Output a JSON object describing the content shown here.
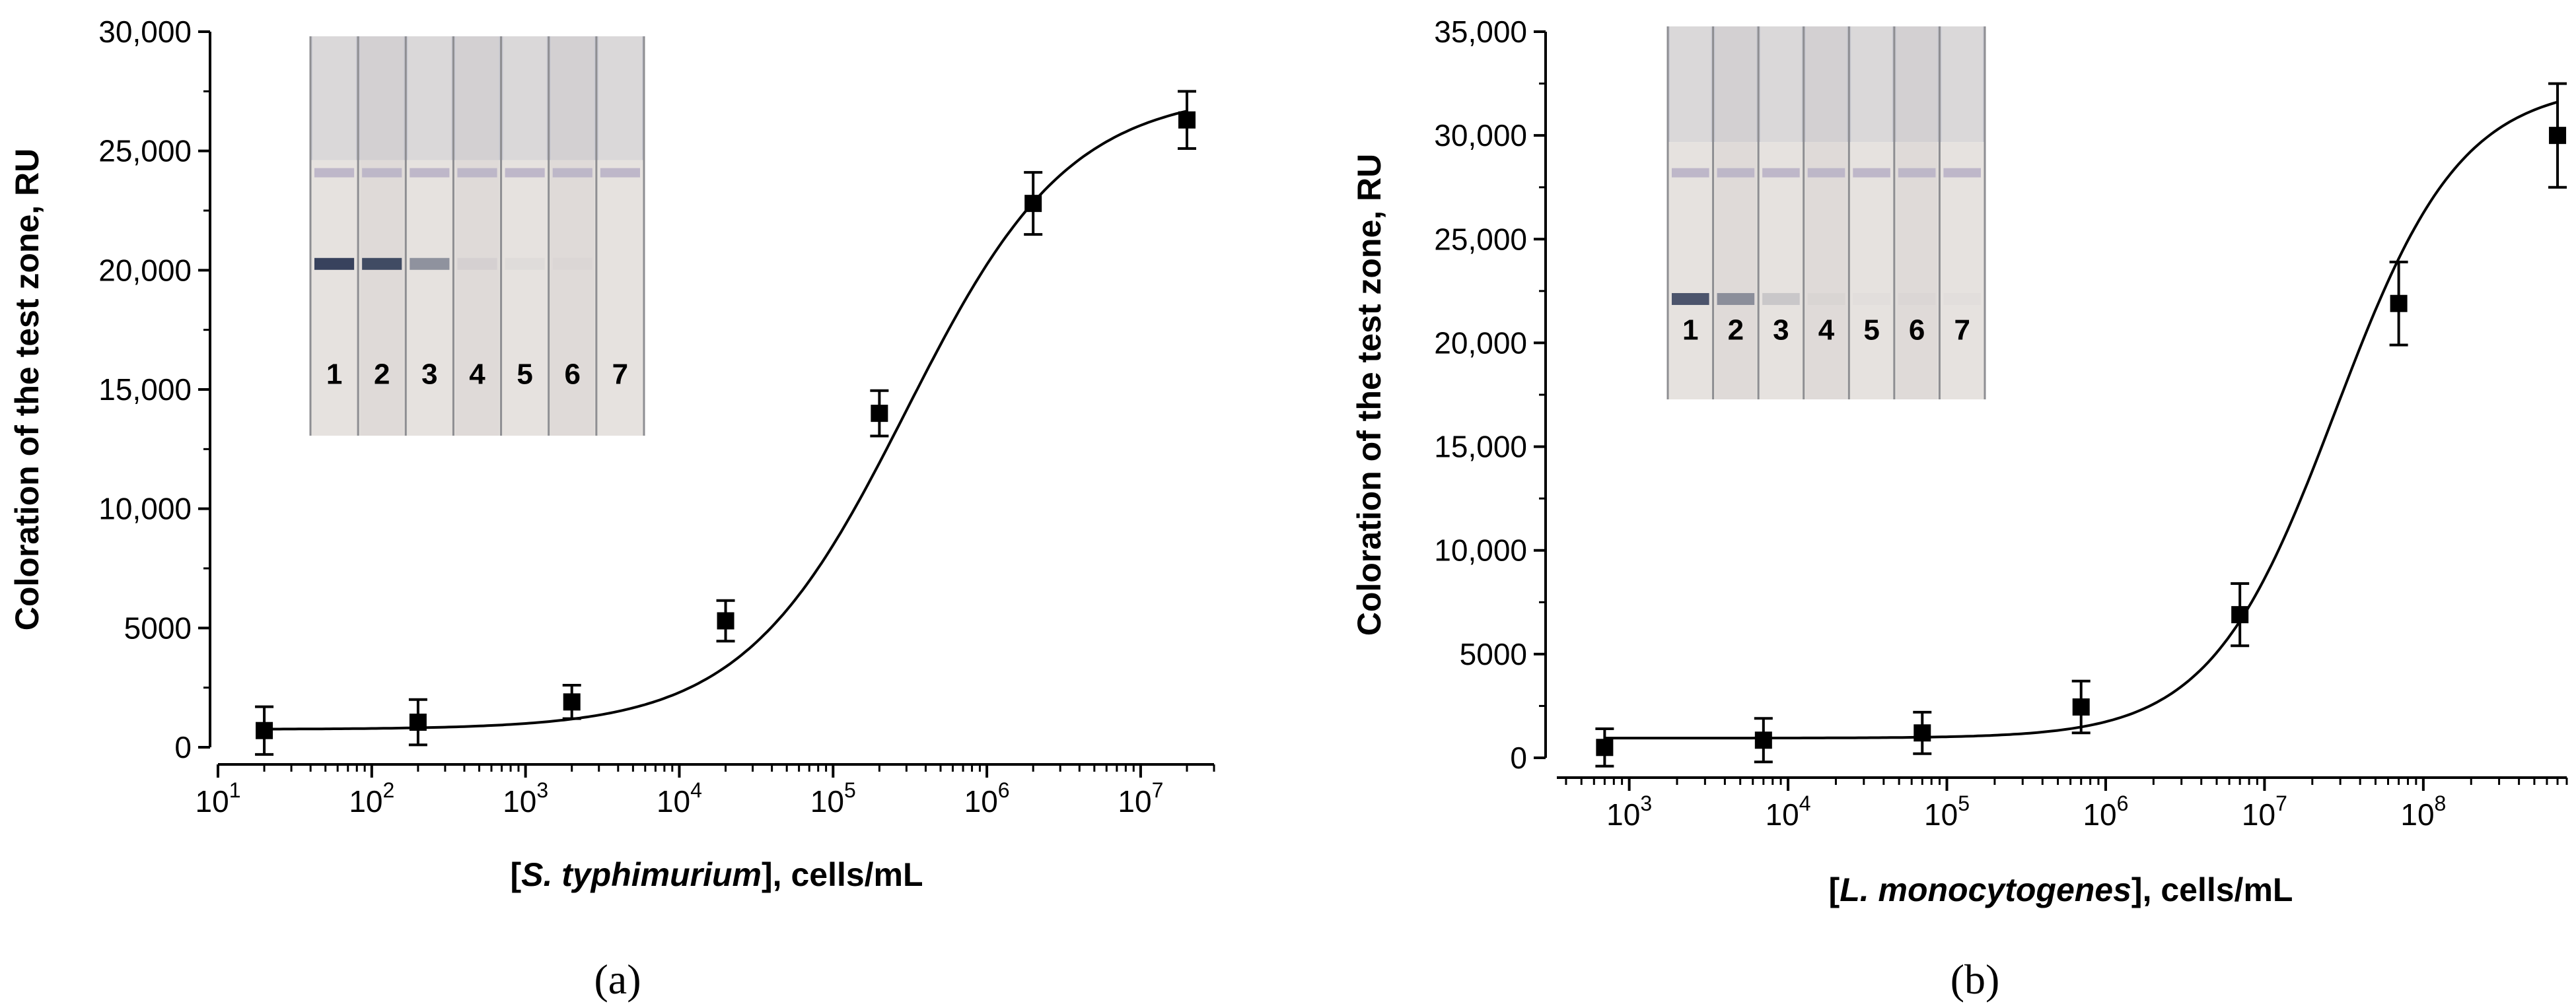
{
  "chart_data": [
    {
      "type": "scatter",
      "panel_label": "(a)",
      "xscale": "log",
      "xlim": [
        10,
        30000000
      ],
      "ylim": [
        0,
        30000
      ],
      "x_ticks": [
        {
          "value": 10,
          "base": "10",
          "exp": "1"
        },
        {
          "value": 100,
          "base": "10",
          "exp": "2"
        },
        {
          "value": 1000,
          "base": "10",
          "exp": "3"
        },
        {
          "value": 10000,
          "base": "10",
          "exp": "4"
        },
        {
          "value": 100000,
          "base": "10",
          "exp": "5"
        },
        {
          "value": 1000000,
          "base": "10",
          "exp": "6"
        },
        {
          "value": 10000000,
          "base": "10",
          "exp": "7"
        }
      ],
      "y_ticks": [
        {
          "value": 0,
          "label": "0"
        },
        {
          "value": 5000,
          "label": "5000"
        },
        {
          "value": 10000,
          "label": "10,000"
        },
        {
          "value": 15000,
          "label": "15,000"
        },
        {
          "value": 20000,
          "label": "20,000"
        },
        {
          "value": 25000,
          "label": "25,000"
        },
        {
          "value": 30000,
          "label": "30,000"
        }
      ],
      "xlabel": {
        "pre": "[",
        "italic": "S. typhimurium",
        "post": "], cells/mL"
      },
      "ylabel": "Coloration of the test zone, RU",
      "points": [
        {
          "x": 20,
          "y": 700,
          "err": 1000
        },
        {
          "x": 200,
          "y": 1050,
          "err": 950
        },
        {
          "x": 2000,
          "y": 1900,
          "err": 700
        },
        {
          "x": 20000,
          "y": 5300,
          "err": 850
        },
        {
          "x": 200000,
          "y": 14000,
          "err": 950
        },
        {
          "x": 2000000,
          "y": 22800,
          "err": 1300
        },
        {
          "x": 20000000,
          "y": 26300,
          "err": 1200
        }
      ],
      "fit": {
        "bottom": 750,
        "top": 27500,
        "ec50": 300000,
        "hill": 0.82
      },
      "inset": {
        "lanes": [
          "1",
          "2",
          "3",
          "4",
          "5",
          "6",
          "7"
        ],
        "band_intensity": [
          0.9,
          0.85,
          0.45,
          0.05,
          0.03,
          0.02,
          0.0
        ]
      }
    },
    {
      "type": "scatter",
      "panel_label": "(b)",
      "xscale": "log",
      "xlim": [
        350,
        800000000
      ],
      "ylim": [
        0,
        35000
      ],
      "x_ticks": [
        {
          "value": 1000,
          "base": "10",
          "exp": "3"
        },
        {
          "value": 10000,
          "base": "10",
          "exp": "4"
        },
        {
          "value": 100000,
          "base": "10",
          "exp": "5"
        },
        {
          "value": 1000000,
          "base": "10",
          "exp": "6"
        },
        {
          "value": 10000000,
          "base": "10",
          "exp": "7"
        },
        {
          "value": 100000000,
          "base": "10",
          "exp": "8"
        }
      ],
      "y_ticks": [
        {
          "value": 0,
          "label": "0"
        },
        {
          "value": 5000,
          "label": "5000"
        },
        {
          "value": 10000,
          "label": "10,000"
        },
        {
          "value": 15000,
          "label": "15,000"
        },
        {
          "value": 20000,
          "label": "20,000"
        },
        {
          "value": 25000,
          "label": "25,000"
        },
        {
          "value": 30000,
          "label": "30,000"
        },
        {
          "value": 35000,
          "label": "35,000"
        }
      ],
      "xlabel": {
        "pre": "[",
        "italic": "L. monocytogenes",
        "post": "], cells/mL"
      },
      "ylabel": "Coloration of the test zone, RU",
      "points": [
        {
          "x": 700,
          "y": 500,
          "err": 900
        },
        {
          "x": 7000,
          "y": 850,
          "err": 1050
        },
        {
          "x": 70000,
          "y": 1200,
          "err": 1000
        },
        {
          "x": 700000,
          "y": 2450,
          "err": 1250
        },
        {
          "x": 7000000,
          "y": 6900,
          "err": 1500
        },
        {
          "x": 70000000,
          "y": 21900,
          "err": 2000
        },
        {
          "x": 700000000,
          "y": 30000,
          "err": 2500
        }
      ],
      "fit": {
        "bottom": 950,
        "top": 32500,
        "ec50": 28000000,
        "hill": 1.1
      },
      "inset": {
        "lanes": [
          "1",
          "2",
          "3",
          "4",
          "5",
          "6",
          "7"
        ],
        "band_intensity": [
          0.8,
          0.45,
          0.15,
          0.03,
          0.02,
          0.02,
          0.02
        ]
      }
    }
  ]
}
